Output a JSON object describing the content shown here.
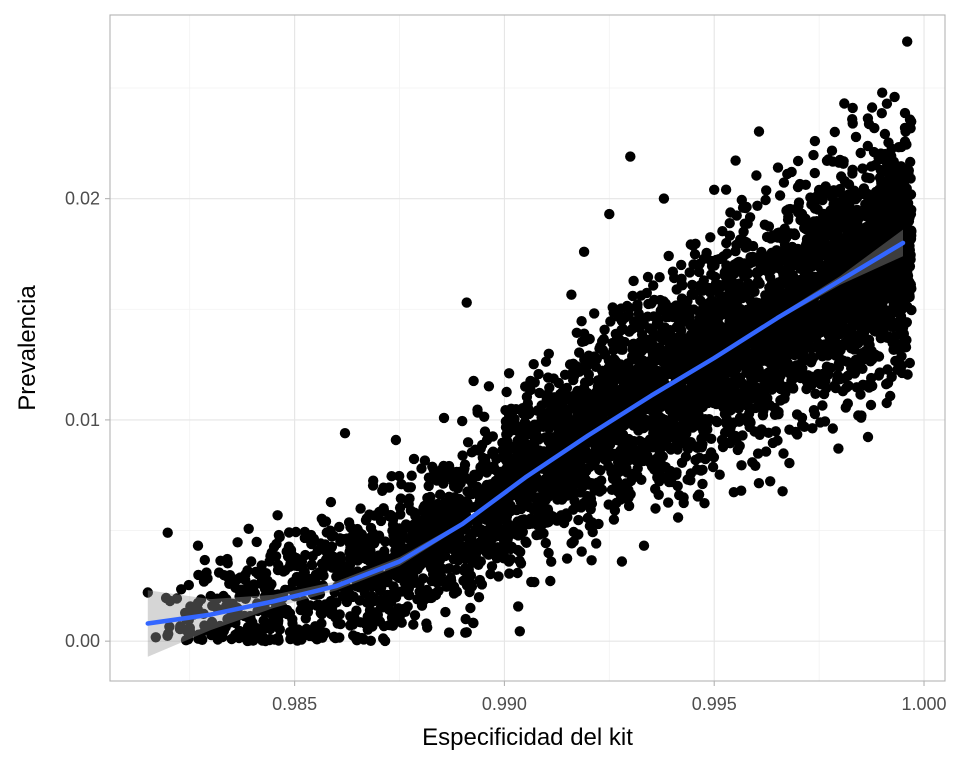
{
  "chart_data": {
    "type": "scatter",
    "title": "",
    "xlabel": "Especificidad del kit",
    "ylabel": "Prevalencia",
    "xlim": [
      0.9806,
      1.0005
    ],
    "ylim": [
      -0.0018,
      0.0283
    ],
    "x_ticks": [
      0.985,
      0.99,
      0.995,
      1.0
    ],
    "x_tick_labels": [
      "0.985",
      "0.990",
      "0.995",
      "1.000"
    ],
    "y_ticks": [
      0.0,
      0.01,
      0.02
    ],
    "y_tick_labels": [
      "0.00",
      "0.01",
      "0.02"
    ],
    "x_minor_ticks": [
      0.9825,
      0.9875,
      0.9925,
      0.9975
    ],
    "y_minor_ticks": [
      0.005,
      0.015,
      0.025
    ],
    "grid": true,
    "point_color": "#000000",
    "point_count_approx": 5000,
    "scatter_model": {
      "description": "dense point cloud around the trend",
      "x_min": 0.9815,
      "x_max": 0.9997,
      "y_sd": 0.0026
    },
    "notable_points": [
      {
        "x": 0.9815,
        "y": 0.0022
      },
      {
        "x": 0.9829,
        "y": 0.0031
      },
      {
        "x": 0.9832,
        "y": 0.0031
      },
      {
        "x": 0.9835,
        "y": 0.0001
      },
      {
        "x": 0.9862,
        "y": 0.0094
      },
      {
        "x": 0.9891,
        "y": 0.0153
      },
      {
        "x": 0.9891,
        "y": 0.0004
      },
      {
        "x": 0.9919,
        "y": 0.0176
      },
      {
        "x": 0.9928,
        "y": 0.0036
      },
      {
        "x": 0.993,
        "y": 0.0219
      },
      {
        "x": 0.9925,
        "y": 0.0193
      },
      {
        "x": 0.9938,
        "y": 0.02
      },
      {
        "x": 0.995,
        "y": 0.0204
      },
      {
        "x": 0.997,
        "y": 0.0217
      },
      {
        "x": 0.9974,
        "y": 0.0226
      },
      {
        "x": 0.9981,
        "y": 0.0243
      },
      {
        "x": 0.9983,
        "y": 0.0234
      },
      {
        "x": 0.9983,
        "y": 0.0241
      },
      {
        "x": 0.9993,
        "y": 0.0246
      },
      {
        "x": 0.9996,
        "y": 0.0271
      },
      {
        "x": 0.9985,
        "y": 0.0101
      },
      {
        "x": 0.9994,
        "y": 0.0134
      },
      {
        "x": 0.9996,
        "y": 0.0167
      }
    ],
    "smooth": {
      "method": "loess",
      "color": "#3366FF",
      "band_color": "#999999",
      "band_opacity": 0.4,
      "x": [
        0.9815,
        0.983,
        0.9845,
        0.986,
        0.9875,
        0.989,
        0.9905,
        0.992,
        0.9935,
        0.995,
        0.9965,
        0.998,
        0.9995
      ],
      "y": [
        0.0008,
        0.0012,
        0.0018,
        0.0025,
        0.0036,
        0.0053,
        0.0074,
        0.0093,
        0.0111,
        0.0128,
        0.0146,
        0.0163,
        0.018
      ],
      "band_half_width": [
        0.0015,
        0.0007,
        0.0003,
        0.0002,
        0.0002,
        0.0001,
        0.0001,
        0.0001,
        0.0001,
        0.0001,
        0.0001,
        0.0002,
        0.0006
      ]
    }
  }
}
